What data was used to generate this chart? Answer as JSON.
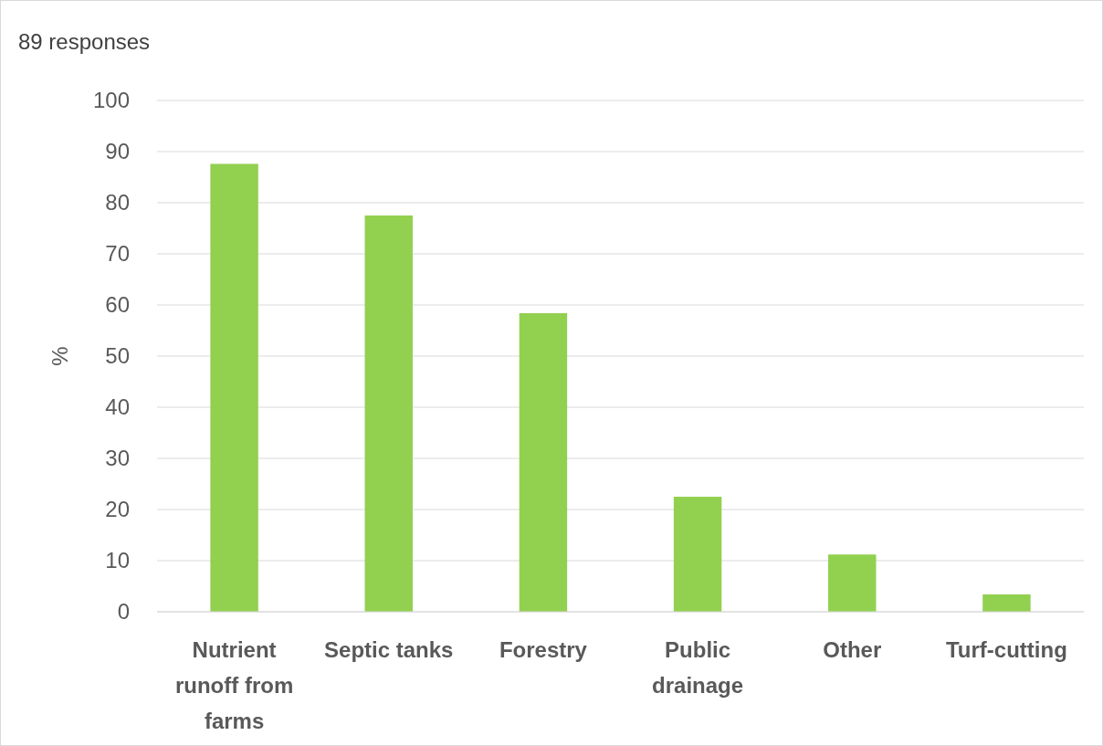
{
  "chart_data": {
    "type": "bar",
    "title": "89 responses",
    "ylabel": "%",
    "categories": [
      "Nutrient runoff from farms",
      "Septic tanks",
      "Forestry",
      "Public drainage",
      "Other",
      "Turf-cutting"
    ],
    "values": [
      87.6,
      77.5,
      58.4,
      22.5,
      11.2,
      3.4
    ],
    "color": "#92d050",
    "ylim": [
      0,
      100
    ],
    "yticks": [
      0,
      10,
      20,
      30,
      40,
      50,
      60,
      70,
      80,
      90,
      100
    ],
    "grid": "y"
  }
}
